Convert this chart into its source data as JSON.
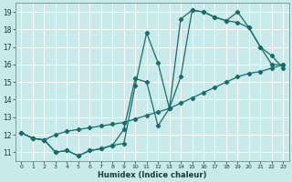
{
  "xlabel": "Humidex (Indice chaleur)",
  "bg_color": "#c8eaea",
  "grid_color": "#ffffff",
  "line_color": "#1a6b6b",
  "xlim": [
    -0.5,
    23.5
  ],
  "ylim": [
    10.5,
    19.5
  ],
  "xticks": [
    0,
    1,
    2,
    3,
    4,
    5,
    6,
    7,
    8,
    9,
    10,
    11,
    12,
    13,
    14,
    15,
    16,
    17,
    18,
    19,
    20,
    21,
    22,
    23
  ],
  "yticks": [
    11,
    12,
    13,
    14,
    15,
    16,
    17,
    18,
    19
  ],
  "line1_x": [
    0,
    1,
    2,
    3,
    4,
    5,
    6,
    7,
    8,
    9,
    10,
    11,
    12,
    13,
    14,
    15,
    16,
    17,
    18,
    19,
    20,
    21,
    22,
    23
  ],
  "line1_y": [
    12.1,
    11.8,
    11.7,
    11.0,
    11.1,
    10.8,
    11.1,
    11.2,
    11.4,
    12.3,
    15.2,
    15.0,
    12.5,
    13.5,
    15.3,
    19.1,
    19.0,
    18.7,
    18.5,
    19.0,
    18.1,
    17.0,
    16.0,
    16.0
  ],
  "line2_x": [
    0,
    1,
    2,
    3,
    4,
    5,
    6,
    7,
    8,
    9,
    10,
    11,
    12,
    13,
    14,
    15,
    16,
    17,
    18,
    19,
    20,
    21,
    22,
    23
  ],
  "line2_y": [
    12.1,
    11.8,
    11.7,
    11.0,
    11.1,
    10.8,
    11.1,
    11.2,
    11.4,
    11.5,
    14.8,
    17.8,
    16.1,
    13.5,
    18.6,
    19.1,
    19.0,
    18.7,
    18.5,
    18.4,
    18.1,
    17.0,
    16.5,
    15.8
  ],
  "line3_x": [
    0,
    1,
    2,
    3,
    4,
    5,
    6,
    7,
    8,
    9,
    10,
    11,
    12,
    13,
    14,
    15,
    16,
    17,
    18,
    19,
    20,
    21,
    22,
    23
  ],
  "line3_y": [
    12.1,
    11.8,
    11.7,
    12.0,
    12.2,
    12.3,
    12.4,
    12.5,
    12.6,
    12.7,
    12.9,
    13.1,
    13.3,
    13.5,
    13.8,
    14.1,
    14.4,
    14.7,
    15.0,
    15.3,
    15.5,
    15.6,
    15.8,
    16.0
  ]
}
